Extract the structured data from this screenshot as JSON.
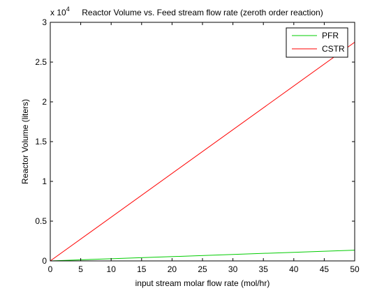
{
  "chart_data": {
    "type": "line",
    "title": "Reactor Volume vs. Feed stream flow rate (zeroth order reaction)",
    "xlabel": "input stream molar flow rate (mol/hr)",
    "ylabel": "Reactor Volume (liters)",
    "y_multiplier": "x 10",
    "y_multiplier_exponent": "4",
    "xlim": [
      0,
      50
    ],
    "ylim": [
      0,
      3
    ],
    "x_ticks": [
      0,
      5,
      10,
      15,
      20,
      25,
      30,
      35,
      40,
      45,
      50
    ],
    "y_ticks": [
      0,
      0.5,
      1,
      1.5,
      2,
      2.5,
      3
    ],
    "y_tick_labels": [
      "0",
      "0.5",
      "1",
      "1.5",
      "2",
      "2.5",
      "3"
    ],
    "x": [
      0,
      50
    ],
    "series": [
      {
        "name": "PFR",
        "color": "#00cc00",
        "values": [
          0,
          0.135
        ]
      },
      {
        "name": "CSTR",
        "color": "#ff0000",
        "values": [
          0,
          2.75
        ]
      }
    ],
    "legend_position": "top-right",
    "grid": false
  }
}
